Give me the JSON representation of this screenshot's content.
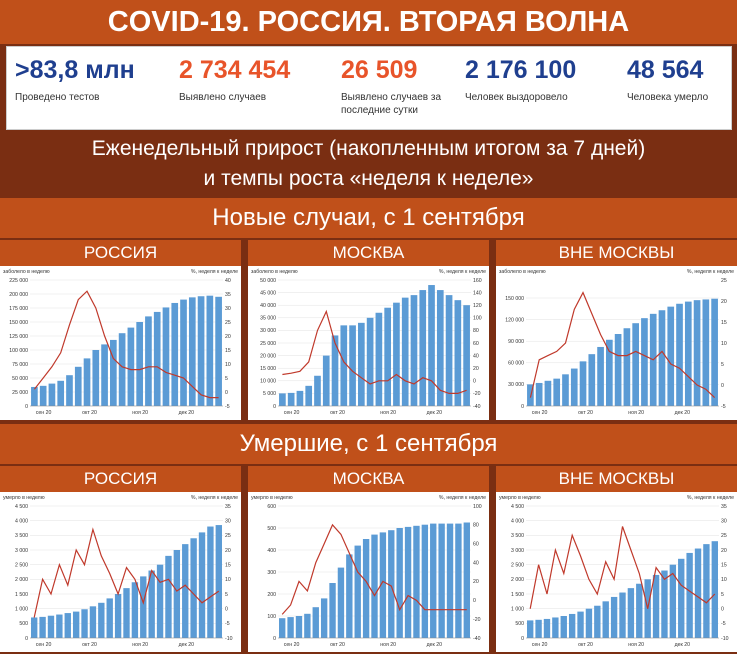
{
  "header": {
    "title": "COVID-19. РОССИЯ. ВТОРАЯ ВОЛНА"
  },
  "stats": [
    {
      "value": ">83,8 млн",
      "label": "Проведено тестов",
      "color": "#1f3f8f"
    },
    {
      "value": "2 734 454",
      "label": "Выявлено случаев",
      "color": "#e8542a"
    },
    {
      "value": "26 509",
      "label": "Выявлено случаев за последние сутки",
      "color": "#e8542a"
    },
    {
      "value": "2 176 100",
      "label": "Человек выздоровело",
      "color": "#1f3f8f"
    },
    {
      "value": "48 564",
      "label": "Человека умерло",
      "color": "#1f3f8f"
    }
  ],
  "subtitle": {
    "line1": "Еженедельный прирост (накопленным итогом за 7 дней)",
    "line2": "и темпы роста «неделя к неделе»"
  },
  "sections": {
    "cases": "Новые случаи, с 1 сентября",
    "deaths": "Умершие, с 1 сентября"
  },
  "colors": {
    "bars": "#5b9bd5",
    "line": "#c0392b"
  },
  "chart_data": [
    {
      "type": "bar",
      "title": "РОССИЯ",
      "left_label": "заболело в неделю",
      "right_label": "%, неделя к неделе",
      "x_ticks": [
        "сен 20",
        "окт 20",
        "ноя 20",
        "дек 20"
      ],
      "ylim": [
        0,
        225000
      ],
      "y_ticks": [
        0,
        25000,
        50000,
        75000,
        100000,
        125000,
        150000,
        175000,
        200000,
        225000
      ],
      "y_tick_labels": [
        "0",
        "25 000",
        "50 000",
        "75 000",
        "100 000",
        "125 000",
        "150 000",
        "175 000",
        "200 000",
        "225 000"
      ],
      "y2lim": [
        -5,
        40
      ],
      "y2_ticks": [
        -5,
        0,
        5,
        10,
        15,
        20,
        25,
        30,
        35,
        40
      ],
      "bars": [
        34000,
        36000,
        40000,
        45000,
        55000,
        70000,
        85000,
        100000,
        110000,
        118000,
        130000,
        140000,
        150000,
        160000,
        168000,
        176000,
        184000,
        190000,
        194000,
        196000,
        197000,
        195000
      ],
      "line": [
        1,
        5,
        9,
        14,
        24,
        33,
        36,
        30,
        20,
        12,
        9,
        8,
        8,
        9,
        9,
        7,
        6,
        5,
        2,
        -1,
        -2,
        -2
      ]
    },
    {
      "type": "bar",
      "title": "МОСКВА",
      "left_label": "заболело в неделю",
      "right_label": "%, неделя к неделе",
      "x_ticks": [
        "сен 20",
        "окт 20",
        "ноя 20",
        "дек 20"
      ],
      "ylim": [
        0,
        50000
      ],
      "y_ticks": [
        0,
        5000,
        10000,
        15000,
        20000,
        25000,
        30000,
        35000,
        40000,
        45000,
        50000
      ],
      "y_tick_labels": [
        "0",
        "5 000",
        "10 000",
        "15 000",
        "20 000",
        "25 000",
        "30 000",
        "35 000",
        "40 000",
        "45 000",
        "50 000"
      ],
      "y2lim": [
        -40,
        160
      ],
      "y2_ticks": [
        -40,
        -20,
        0,
        20,
        40,
        60,
        80,
        100,
        120,
        140,
        160
      ],
      "bars": [
        5000,
        5200,
        6000,
        8000,
        12000,
        20000,
        28000,
        32000,
        32000,
        33000,
        35000,
        37000,
        39000,
        41000,
        43000,
        44000,
        46000,
        48000,
        46000,
        44000,
        42000,
        40000
      ],
      "line": [
        10,
        12,
        15,
        30,
        80,
        110,
        60,
        30,
        15,
        5,
        -5,
        0,
        0,
        10,
        0,
        -5,
        5,
        0,
        -15,
        -20,
        -20,
        -15
      ]
    },
    {
      "type": "bar",
      "title": "ВНЕ МОСКВЫ",
      "left_label": "заболело в неделю",
      "right_label": "%, неделя к неделе",
      "x_ticks": [
        "сен 20",
        "окт 20",
        "ноя 20",
        "дек 20"
      ],
      "ylim": [
        0,
        175000
      ],
      "y_ticks": [
        0,
        30000,
        60000,
        90000,
        120000,
        150000
      ],
      "y_tick_labels": [
        "0",
        "30 000",
        "60 000",
        "90 000",
        "120 000",
        "150 000"
      ],
      "y2lim": [
        -5,
        25
      ],
      "y2_ticks": [
        -5,
        0,
        5,
        10,
        15,
        20,
        25
      ],
      "bars": [
        30000,
        32000,
        35000,
        38000,
        44000,
        52000,
        62000,
        72000,
        82000,
        92000,
        100000,
        108000,
        115000,
        122000,
        128000,
        133000,
        138000,
        142000,
        145000,
        147000,
        148000,
        149000
      ],
      "line": [
        -3,
        6,
        7,
        8,
        10,
        18,
        22,
        17,
        12,
        8,
        7,
        7,
        8,
        7,
        6,
        8,
        5,
        4,
        2,
        0,
        -1,
        -3
      ]
    },
    {
      "type": "bar",
      "title": "РОССИЯ",
      "left_label": "умерло в неделю",
      "right_label": "%, неделя к неделе",
      "x_ticks": [
        "сен 20",
        "окт 20",
        "ноя 20",
        "дек 20"
      ],
      "ylim": [
        0,
        4500
      ],
      "y_ticks": [
        0,
        500,
        1000,
        1500,
        2000,
        2500,
        3000,
        3500,
        4000,
        4500
      ],
      "y_tick_labels": [
        "0",
        "500",
        "1 000",
        "1 500",
        "2 000",
        "2 500",
        "3 000",
        "3 500",
        "4 000",
        "4 500"
      ],
      "y2lim": [
        -10,
        35
      ],
      "y2_ticks": [
        -10,
        -5,
        0,
        5,
        10,
        15,
        20,
        25,
        30,
        35
      ],
      "bars": [
        700,
        720,
        760,
        800,
        850,
        900,
        980,
        1080,
        1200,
        1350,
        1500,
        1700,
        1900,
        2100,
        2300,
        2500,
        2800,
        3000,
        3200,
        3400,
        3600,
        3800,
        3850
      ],
      "line": [
        -3,
        10,
        5,
        15,
        8,
        20,
        15,
        27,
        18,
        12,
        5,
        14,
        10,
        2,
        13,
        9,
        10,
        6,
        8,
        5,
        2,
        4,
        6
      ]
    },
    {
      "type": "bar",
      "title": "МОСКВА",
      "left_label": "умерло в неделю",
      "right_label": "%, неделя к неделе",
      "x_ticks": [
        "сен 20",
        "окт 20",
        "ноя 20",
        "дек 20"
      ],
      "ylim": [
        0,
        600
      ],
      "y_ticks": [
        0,
        100,
        200,
        300,
        400,
        500,
        600
      ],
      "y_tick_labels": [
        "0",
        "100",
        "200",
        "300",
        "400",
        "500",
        "600"
      ],
      "y2lim": [
        -40,
        100
      ],
      "y2_ticks": [
        -40,
        -20,
        0,
        20,
        40,
        60,
        80,
        100
      ],
      "bars": [
        90,
        95,
        100,
        110,
        140,
        180,
        250,
        320,
        380,
        420,
        450,
        470,
        480,
        490,
        500,
        505,
        510,
        515,
        520,
        520,
        520,
        520,
        525
      ],
      "line": [
        -15,
        -5,
        20,
        10,
        40,
        60,
        80,
        70,
        50,
        30,
        20,
        5,
        20,
        15,
        -10,
        5,
        0,
        -10,
        -10,
        -10,
        -10,
        -10,
        -10
      ]
    },
    {
      "type": "bar",
      "title": "ВНЕ МОСКВЫ",
      "left_label": "умерло в неделю",
      "right_label": "%, неделя к неделе",
      "x_ticks": [
        "сен 20",
        "окт 20",
        "ноя 20",
        "дек 20"
      ],
      "ylim": [
        0,
        4500
      ],
      "y_ticks": [
        0,
        500,
        1000,
        1500,
        2000,
        2500,
        3000,
        3500,
        4000,
        4500
      ],
      "y_tick_labels": [
        "0",
        "500",
        "1 000",
        "1 500",
        "2 000",
        "2 500",
        "3 000",
        "3 500",
        "4 000",
        "4 500"
      ],
      "y2lim": [
        -10,
        35
      ],
      "y2_ticks": [
        -10,
        -5,
        0,
        5,
        10,
        15,
        20,
        25,
        30,
        35
      ],
      "bars": [
        600,
        620,
        650,
        700,
        750,
        820,
        900,
        1000,
        1100,
        1250,
        1400,
        1550,
        1700,
        1850,
        2000,
        2150,
        2300,
        2500,
        2700,
        2900,
        3050,
        3200,
        3300
      ],
      "line": [
        0,
        15,
        5,
        20,
        12,
        25,
        18,
        10,
        5,
        16,
        10,
        28,
        20,
        12,
        0,
        14,
        10,
        12,
        8,
        6,
        4,
        2,
        5
      ]
    }
  ]
}
